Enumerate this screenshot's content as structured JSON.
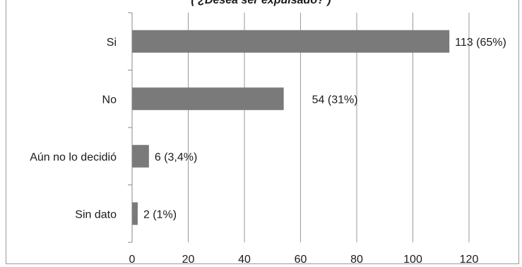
{
  "chart_data": {
    "type": "bar",
    "orientation": "horizontal",
    "title": "( ¿Desea ser expulsado? )",
    "categories": [
      "Si",
      "No",
      "Aún no lo decidió",
      "Sin dato"
    ],
    "values": [
      113,
      54,
      6,
      2
    ],
    "data_labels": [
      "113 (65%)",
      "54 (31%)",
      "6 (3,4%)",
      "2 (1%)"
    ],
    "xlim": [
      0,
      120
    ],
    "x_ticks": [
      0,
      20,
      40,
      60,
      80,
      100,
      120
    ],
    "grid": true,
    "bar_color": "#7a7a7a",
    "grid_color": "#9a9a9a"
  }
}
